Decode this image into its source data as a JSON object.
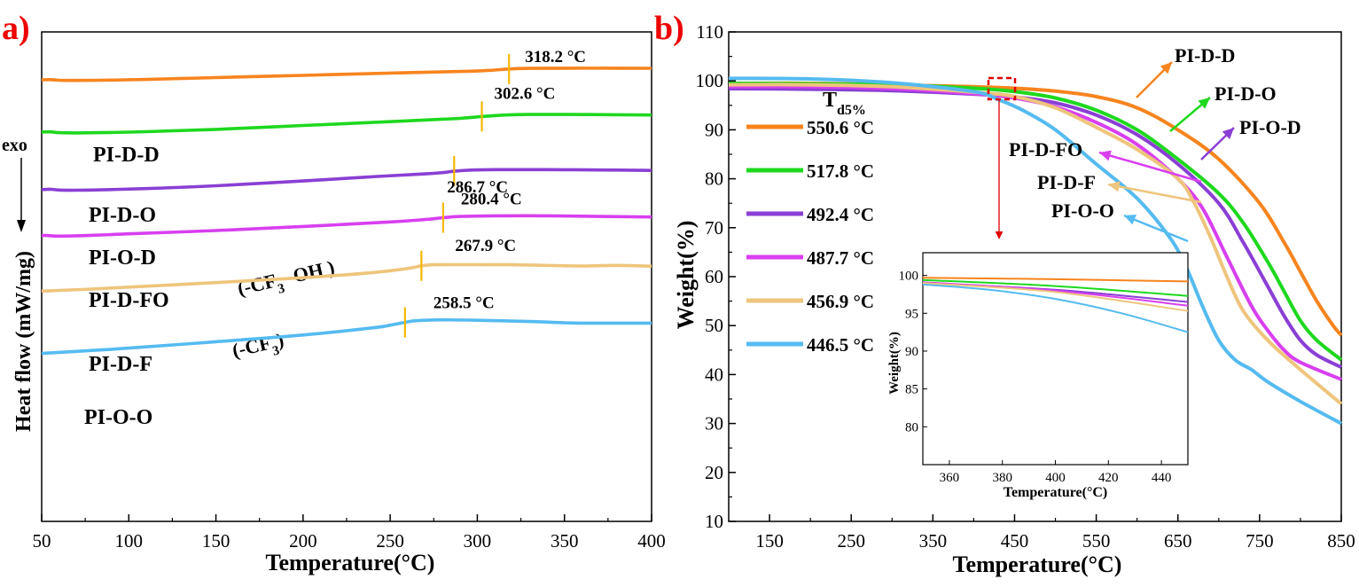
{
  "colors": {
    "PI-D-D": "#F7841E",
    "PI-D-O": "#1ED81E",
    "PI-O-D": "#8A3FD4",
    "PI-D-FO": "#D83FEF",
    "PI-D-F": "#EEC57C",
    "PI-O-O": "#55BBF0",
    "panel_label": "#EE0000",
    "tg_marker": "#F5B800",
    "box": "#E00000",
    "arrow_red": "#E00000"
  },
  "chart_data": [
    {
      "panel_label": "a)",
      "type": "line",
      "title": "",
      "xlabel": "Temperature(°C)",
      "ylabel": "Heat flow (mW/mg)",
      "exo_label": "exo",
      "xlim": [
        50,
        400
      ],
      "xticks": [
        50,
        100,
        150,
        200,
        250,
        300,
        350,
        400
      ],
      "y_ticks_shown": false,
      "series": [
        {
          "name": "PI-D-D",
          "tg": 318.2,
          "tg_label": "318.2 °C",
          "x": [
            50,
            55,
            60,
            70,
            90,
            110,
            150,
            200,
            250,
            290,
            300,
            310,
            318.2,
            330,
            350,
            380,
            400
          ],
          "y": [
            0.84,
            0.83,
            0.86,
            0.87,
            0.85,
            0.82,
            0.73,
            0.62,
            0.51,
            0.43,
            0.41,
            0.36,
            0.31,
            0.28,
            0.27,
            0.27,
            0.275
          ]
        },
        {
          "name": "PI-D-O",
          "tg": 302.6,
          "tg_label": "302.6 °C",
          "x": [
            50,
            55,
            60,
            70,
            90,
            110,
            150,
            200,
            250,
            280,
            290,
            302.6,
            315,
            330,
            350,
            380,
            400
          ],
          "y": [
            3.39,
            3.38,
            3.42,
            3.43,
            3.41,
            3.37,
            3.26,
            3.07,
            2.88,
            2.76,
            2.72,
            2.63,
            2.56,
            2.53,
            2.53,
            2.545,
            2.555
          ]
        },
        {
          "name": "PI-O-D",
          "tg": 286.7,
          "tg_label": "286.7 °C",
          "x": [
            50,
            55,
            60,
            70,
            90,
            120,
            150,
            200,
            240,
            270,
            280,
            286.7,
            295,
            310,
            340,
            370,
            400
          ],
          "y": [
            6.2,
            6.18,
            6.22,
            6.23,
            6.2,
            6.12,
            6.01,
            5.78,
            5.57,
            5.43,
            5.37,
            5.3,
            5.25,
            5.225,
            5.225,
            5.24,
            5.265
          ]
        },
        {
          "name": "PI-D-FO",
          "tg": 280.4,
          "tg_label": "280.4 °C",
          "annotation": "(-CF3 -OH )",
          "x": [
            50,
            53,
            60,
            80,
            100,
            150,
            200,
            250,
            270,
            280.4,
            290,
            310,
            340,
            370,
            400
          ],
          "y": [
            8.44,
            8.44,
            8.47,
            8.43,
            8.36,
            8.2,
            8.0,
            7.78,
            7.66,
            7.57,
            7.51,
            7.48,
            7.48,
            7.51,
            7.535
          ]
        },
        {
          "name": "PI-D-F",
          "tg": 267.9,
          "tg_label": "267.9 °C",
          "annotation": "(-CF3)",
          "x": [
            50,
            53,
            60,
            80,
            100,
            150,
            200,
            240,
            260,
            267.9,
            275,
            290,
            320,
            360,
            380,
            400
          ],
          "y": [
            11.15,
            11.15,
            11.12,
            11.05,
            10.96,
            10.74,
            10.5,
            10.25,
            10.05,
            9.92,
            9.87,
            9.86,
            9.87,
            9.93,
            9.9,
            9.94
          ]
        },
        {
          "name": "PI-O-O",
          "tg": 258.5,
          "tg_label": "258.5 °C",
          "x": [
            50,
            80,
            100,
            150,
            200,
            240,
            250,
            258.5,
            265,
            280,
            300,
            330,
            350,
            360,
            380,
            400
          ],
          "y": [
            14.2,
            14.05,
            13.94,
            13.63,
            13.3,
            12.95,
            12.82,
            12.68,
            12.6,
            12.56,
            12.58,
            12.64,
            12.7,
            12.72,
            12.72,
            12.72
          ]
        }
      ],
      "curve_labels": [
        "PI-D-D",
        "PI-D-O",
        "PI-O-D",
        "PI-D-FO",
        "PI-D-F",
        "PI-O-O"
      ]
    },
    {
      "panel_label": "b)",
      "type": "line",
      "title": "",
      "xlabel": "Temperature(°C)",
      "ylabel": "Weight(%)",
      "xlim": [
        100,
        850
      ],
      "ylim": [
        10,
        110
      ],
      "xticks": [
        150,
        250,
        350,
        450,
        550,
        650,
        750,
        850
      ],
      "yticks": [
        10,
        20,
        30,
        40,
        50,
        60,
        70,
        80,
        90,
        100,
        110
      ],
      "legend_title": "Td5%",
      "legend_position": "left",
      "legend": [
        {
          "name": "PI-D-D",
          "label": "550.6 °C"
        },
        {
          "name": "PI-D-O",
          "label": "517.8 °C"
        },
        {
          "name": "PI-O-D",
          "label": "492.4 °C"
        },
        {
          "name": "PI-D-FO",
          "label": "487.7 °C"
        },
        {
          "name": "PI-D-F",
          "label": "456.9 °C"
        },
        {
          "name": "PI-O-O",
          "label": "446.5 °C"
        }
      ],
      "series": [
        {
          "name": "PI-D-D",
          "x": [
            100,
            200,
            300,
            400,
            450,
            500,
            550,
            600,
            650,
            700,
            750,
            780,
            800,
            820,
            840,
            850
          ],
          "y": [
            99.5,
            99.5,
            99.2,
            98.8,
            98.5,
            97.9,
            96.8,
            94.5,
            90,
            84,
            75,
            67,
            61,
            55,
            50,
            48
          ]
        },
        {
          "name": "PI-D-O",
          "x": [
            100,
            200,
            300,
            400,
            450,
            500,
            550,
            600,
            650,
            700,
            730,
            760,
            780,
            800,
            820,
            850
          ],
          "y": [
            99.5,
            99.4,
            99.2,
            98.5,
            97.8,
            96.5,
            94,
            90,
            84,
            77,
            71,
            63,
            57,
            51,
            47,
            43
          ]
        },
        {
          "name": "PI-O-D",
          "x": [
            100,
            200,
            300,
            400,
            450,
            500,
            550,
            600,
            650,
            700,
            730,
            760,
            780,
            800,
            820,
            850
          ],
          "y": [
            98.4,
            98.3,
            98.0,
            97.3,
            96.7,
            95.5,
            93,
            89,
            83,
            75,
            67,
            58,
            52,
            47,
            44,
            41.5
          ]
        },
        {
          "name": "PI-D-FO",
          "x": [
            100,
            200,
            300,
            400,
            450,
            500,
            550,
            600,
            650,
            680,
            710,
            740,
            760,
            780,
            800,
            850
          ],
          "y": [
            98.8,
            98.8,
            98.4,
            97.4,
            96.5,
            94.7,
            91.5,
            87,
            80,
            74,
            64,
            54,
            49,
            45,
            42.5,
            39
          ]
        },
        {
          "name": "PI-D-F",
          "x": [
            100,
            200,
            300,
            400,
            450,
            500,
            550,
            600,
            650,
            670,
            690,
            710,
            730,
            760,
            800,
            850
          ],
          "y": [
            99.2,
            99.2,
            98.8,
            97.7,
            96.8,
            94.5,
            90.5,
            86,
            80,
            75,
            68,
            60,
            53,
            47,
            41,
            34
          ]
        },
        {
          "name": "PI-O-O",
          "x": [
            100,
            200,
            300,
            400,
            430,
            460,
            500,
            550,
            600,
            640,
            660,
            680,
            700,
            720,
            740,
            760,
            800,
            850
          ],
          "y": [
            100.5,
            100.4,
            99.6,
            97.8,
            96.2,
            94,
            90,
            83,
            76,
            68,
            62,
            54,
            47,
            43,
            41,
            38.5,
            34.5,
            30
          ]
        }
      ],
      "curve_labels": [
        "PI-D-D",
        "PI-D-O",
        "PI-O-D",
        "PI-D-FO",
        "PI-D-F",
        "PI-O-O"
      ],
      "inset": {
        "type": "line",
        "xlabel": "Temperature(°C)",
        "ylabel": "Weight(%)",
        "xlim": [
          350,
          450
        ],
        "ylim": [
          75,
          103
        ],
        "xticks": [
          360,
          380,
          400,
          420,
          440
        ],
        "yticks": [
          80,
          85,
          90,
          95,
          100
        ],
        "series": [
          {
            "name": "PI-D-D",
            "x": [
              350,
              400,
              450
            ],
            "y": [
              99.7,
              99.5,
              99.2
            ]
          },
          {
            "name": "PI-D-O",
            "x": [
              350,
              400,
              450
            ],
            "y": [
              99.4,
              98.6,
              97.3
            ]
          },
          {
            "name": "PI-O-D",
            "x": [
              350,
              400,
              450
            ],
            "y": [
              99.0,
              98.1,
              96.5
            ]
          },
          {
            "name": "PI-D-FO",
            "x": [
              350,
              400,
              450
            ],
            "y": [
              99.1,
              98.0,
              96.0
            ]
          },
          {
            "name": "PI-D-F",
            "x": [
              350,
              400,
              450
            ],
            "y": [
              99.0,
              97.8,
              95.3
            ]
          },
          {
            "name": "PI-O-O",
            "x": [
              350,
              375,
              400,
              425,
              450
            ],
            "y": [
              98.8,
              98.1,
              96.9,
              95.0,
              92.5
            ]
          }
        ]
      }
    }
  ]
}
